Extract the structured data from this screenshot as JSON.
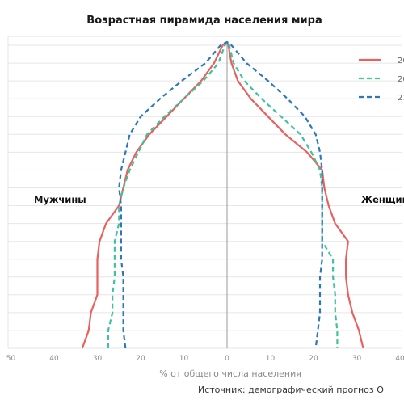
{
  "chart_data": {
    "type": "line",
    "title": "Возрастная пирамида населения мира",
    "xlabel": "% от общего числа населения",
    "source": "Источник: демографический прогноз О",
    "left_label": "Мужчины",
    "right_label": "Женщин",
    "x_ticks": [
      "50",
      "40",
      "30",
      "20",
      "10",
      "0",
      "10",
      "20",
      "30",
      "40"
    ],
    "x_tick_values": [
      -50,
      -40,
      -30,
      -20,
      -10,
      0,
      10,
      20,
      30,
      40
    ],
    "xlim": [
      -52,
      41
    ],
    "y_rows": 18,
    "grid": true,
    "legend_position": "top-right",
    "series": [
      {
        "name": "20",
        "color": "#e8615f",
        "dash": "solid",
        "male": [
          33.5,
          32,
          31.5,
          30,
          30,
          30,
          29.5,
          28,
          25,
          24,
          23,
          21,
          18,
          14,
          10,
          6,
          3,
          1
        ],
        "female": [
          31.5,
          30.5,
          29,
          28,
          27.5,
          27.5,
          28,
          25,
          23.5,
          22.5,
          22,
          18.5,
          13.5,
          9.5,
          5.5,
          2.5,
          1,
          0.3
        ]
      },
      {
        "name": "20",
        "color": "#3ec39a",
        "dash": "dash",
        "male": [
          27.5,
          27.5,
          26.5,
          26.5,
          26,
          26,
          26,
          25,
          25,
          24,
          22.5,
          20.5,
          18.5,
          14.5,
          10,
          5.5,
          2,
          0.5
        ],
        "female": [
          25.5,
          25.5,
          25,
          25,
          24.5,
          24.5,
          22,
          22,
          22,
          22,
          21.5,
          19.5,
          17,
          12.5,
          8,
          4,
          1.5,
          0.5
        ]
      },
      {
        "name": "21",
        "color": "#2e78b9",
        "dash": "dash",
        "male": [
          23.5,
          24,
          24,
          24,
          24,
          24.5,
          24.5,
          24.5,
          24.5,
          25,
          24.5,
          23.5,
          22.5,
          20,
          15.5,
          10.5,
          5,
          1.5
        ],
        "female": [
          20.5,
          21,
          21.5,
          21.5,
          21.5,
          22,
          22,
          22,
          22,
          22,
          22,
          21.5,
          20.5,
          18,
          14,
          9.5,
          4.5,
          1
        ]
      }
    ]
  }
}
